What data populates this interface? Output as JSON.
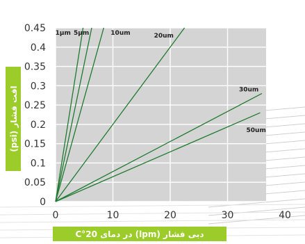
{
  "chart_data": {
    "type": "line",
    "xlabel": "دبی فشار (lpm) در دمای 20°C",
    "ylabel": "افت فشار (psi)",
    "xlim": [
      0,
      40
    ],
    "ylim": [
      0,
      0.45
    ],
    "x_ticks": [
      "0",
      "10",
      "20",
      "30",
      "40"
    ],
    "y_ticks": [
      "0",
      "0.05",
      "0.1",
      "0.15",
      "0.2",
      "0.25",
      "0.3",
      "0.35",
      "0.4",
      "0.45"
    ],
    "grid": true,
    "series": [
      {
        "name": "1µm",
        "values": [
          [
            0,
            0
          ],
          [
            4.8,
            0.45
          ]
        ]
      },
      {
        "name": "5µm",
        "values": [
          [
            0,
            0
          ],
          [
            6.3,
            0.45
          ]
        ]
      },
      {
        "name": "10um",
        "values": [
          [
            0,
            0
          ],
          [
            8.4,
            0.45
          ]
        ]
      },
      {
        "name": "20um",
        "values": [
          [
            0,
            0
          ],
          [
            22.5,
            0.45
          ]
        ]
      },
      {
        "name": "30um",
        "values": [
          [
            0,
            0
          ],
          [
            36.0,
            0.28
          ]
        ]
      },
      {
        "name": "50um",
        "values": [
          [
            0,
            0
          ],
          [
            35.7,
            0.23
          ]
        ]
      }
    ],
    "series_color": "#1e7a2e",
    "plot_background": "#d4d4d4",
    "label_background": "#9ccc2a"
  }
}
